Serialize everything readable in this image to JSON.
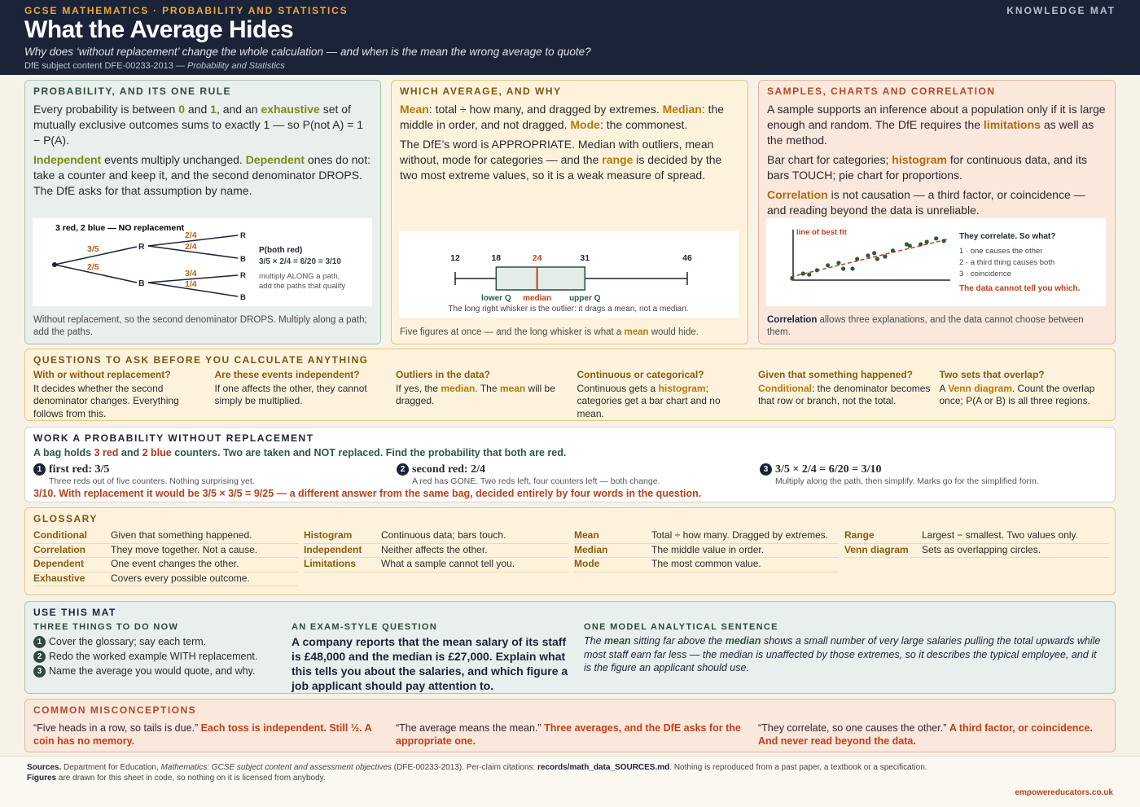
{
  "header": {
    "kicker": "GCSE MATHEMATICS · PROBABILITY AND STATISTICS",
    "title": "What the Average Hides",
    "subtitle": "Why does ‘without replacement’ change the whole calculation — and when is the mean the wrong average to quote?",
    "source": [
      "DfE subject content DFE-00233-2013 — ",
      {
        "i": "Probability and Statistics"
      }
    ],
    "badge": "KNOWLEDGE MAT"
  },
  "probability": {
    "title": "PROBABILITY, AND ITS ONE RULE",
    "paragraphs": [
      [
        "Every probability is between ",
        {
          "b": "0"
        },
        " and ",
        {
          "b": "1"
        },
        ", and an ",
        {
          "b": "exhaustive"
        },
        " set of mutually exclusive outcomes sums to exactly 1 — so P(not A) = 1 − P(A)."
      ],
      [
        {
          "b": "Independent"
        },
        " events multiply unchanged. ",
        {
          "b": "Dependent"
        },
        " ones do not: take a counter and keep it, and the second denominator DROPS. The DfE asks for that assumption by name."
      ]
    ],
    "tree": {
      "title": "3 red, 2 blue — NO replacement",
      "first": [
        "3/5",
        "2/5"
      ],
      "nodes": [
        "R",
        "B"
      ],
      "second": [
        "2/4",
        "2/4",
        "3/4",
        "1/4"
      ],
      "ends": [
        "R",
        "B",
        "R",
        "B"
      ],
      "note_title": "P(both red)",
      "note_formula": "3/5 × 2/4 = 6/20 = 3/10",
      "note_lines": [
        "multiply ALONG a path,",
        "add the paths that qualify"
      ]
    },
    "caption": "Without replacement, so the second denominator DROPS. Multiply along a path; add the paths."
  },
  "averages": {
    "title": "WHICH AVERAGE, AND WHY",
    "paragraphs": [
      [
        {
          "b": "Mean"
        },
        ": total ÷ how many, and dragged by extremes. ",
        {
          "b": "Median"
        },
        ": the middle in order, and not dragged. ",
        {
          "b": "Mode"
        },
        ": the commonest."
      ],
      [
        "The DfE’s word is APPROPRIATE. Median with outliers, mean without, mode for categories — and the ",
        {
          "b": "range"
        },
        " is decided by the two most extreme values, so it is a weak measure of spread."
      ]
    ],
    "boxplot": {
      "min": 12,
      "q1": 18,
      "median": 24,
      "q3": 31,
      "max": 46,
      "q1_label": "lower Q",
      "median_label": "median",
      "q3_label": "upper Q",
      "caption": "The long right whisker is the outlier: it drags a mean, not a median."
    },
    "caption": [
      "Five figures at once — and the long whisker is what a ",
      {
        "b": "mean"
      },
      " would hide."
    ]
  },
  "samples": {
    "title": "SAMPLES, CHARTS AND CORRELATION",
    "paragraphs": [
      [
        "A sample supports an inference about a population only if it is large enough and random. The DfE requires the ",
        {
          "b": "limitations"
        },
        " as well as the method."
      ],
      [
        "Bar chart for categories; ",
        {
          "b": "histogram"
        },
        " for continuous data, and its bars TOUCH; pie chart for proportions."
      ],
      [
        {
          "b": "Correlation"
        },
        " is not causation — a third factor, or coincidence — and reading beyond the data is unreliable."
      ]
    ],
    "scatter": {
      "fit_label": "line of best fit",
      "xlim": [
        0,
        100
      ],
      "ylim": [
        0,
        100
      ],
      "points": [
        [
          1,
          5
        ],
        [
          8,
          15
        ],
        [
          12,
          13
        ],
        [
          17,
          22
        ],
        [
          24,
          32
        ],
        [
          31,
          37
        ],
        [
          34,
          25
        ],
        [
          40,
          25
        ],
        [
          43,
          45
        ],
        [
          50,
          52
        ],
        [
          54,
          57
        ],
        [
          56,
          45
        ],
        [
          61,
          50
        ],
        [
          66,
          62
        ],
        [
          75,
          75
        ],
        [
          77,
          72
        ],
        [
          84,
          75
        ],
        [
          88,
          80
        ],
        [
          94,
          87
        ],
        [
          99,
          82
        ]
      ],
      "heading": "They correlate. So what?",
      "options": [
        "1 · one causes the other",
        "2 · a third thing causes both",
        "3 · coincidence"
      ],
      "verdict": "The data cannot tell you which."
    },
    "caption": [
      {
        "b": "Correlation"
      },
      " allows three explanations, and the data cannot choose between them."
    ]
  },
  "questions": {
    "title": "QUESTIONS TO ASK BEFORE YOU CALCULATE ANYTHING",
    "items": [
      {
        "q": "With or without replacement?",
        "a": [
          "It decides whether the second denominator changes. Everything follows from this."
        ]
      },
      {
        "q": "Are these events independent?",
        "a": [
          "If one affects the other, they cannot simply be multiplied."
        ]
      },
      {
        "q": "Outliers in the data?",
        "a": [
          "If yes, the ",
          {
            "b": "median"
          },
          ". The ",
          {
            "b": "mean"
          },
          " will be dragged."
        ]
      },
      {
        "q": "Continuous or categorical?",
        "a": [
          "Continuous gets a ",
          {
            "b": "histogram"
          },
          "; categories get a bar chart and no mean."
        ]
      },
      {
        "q": "Given that something happened?",
        "a": [
          {
            "b": "Conditional"
          },
          ": the denominator becomes that row or branch, not the total."
        ]
      },
      {
        "q": "Two sets that overlap?",
        "a": [
          "A ",
          {
            "b": "Venn diagram"
          },
          ". Count the overlap once; P(A or B) is all three regions."
        ]
      }
    ]
  },
  "worked": {
    "title": "WORK A PROBABILITY WITHOUT REPLACEMENT",
    "problem": [
      "A bag holds ",
      {
        "b": "3 red"
      },
      " and ",
      {
        "b": "2 blue"
      },
      " counters. Two are taken and NOT replaced. Find the probability that both are red."
    ],
    "steps": [
      {
        "n": "1",
        "head": "first red: 3/5",
        "note": "Three reds out of five counters. Nothing surprising yet."
      },
      {
        "n": "2",
        "head": "second red: 2/4",
        "note": "A red has GONE. Two reds left, four counters left — both change."
      },
      {
        "n": "3",
        "head": "3/5 × 2/4 = 6/20 = 3/10",
        "note": "Multiply along the path, then simplify. Marks go for the simplified form."
      }
    ],
    "conclusion": "3/10. With replacement it would be 3/5 × 3/5 = 9/25 — a different answer from the same bag, decided entirely by four words in the question."
  },
  "glossary": {
    "title": "GLOSSARY",
    "columns": [
      [
        {
          "term": "Conditional",
          "def": "Given that something happened."
        },
        {
          "term": "Correlation",
          "def": "They move together. Not a cause."
        },
        {
          "term": "Dependent",
          "def": "One event changes the other."
        },
        {
          "term": "Exhaustive",
          "def": "Covers every possible outcome."
        }
      ],
      [
        {
          "term": "Histogram",
          "def": "Continuous data; bars touch."
        },
        {
          "term": "Independent",
          "def": "Neither affects the other."
        },
        {
          "term": "Limitations",
          "def": "What a sample cannot tell you."
        }
      ],
      [
        {
          "term": "Mean",
          "def": "Total ÷ how many. Dragged by extremes."
        },
        {
          "term": "Median",
          "def": "The middle value in order."
        },
        {
          "term": "Mode",
          "def": "The most common value."
        }
      ],
      [
        {
          "term": "Range",
          "def": "Largest − smallest. Two values only."
        },
        {
          "term": "Venn diagram",
          "def": "Sets as overlapping circles."
        }
      ]
    ]
  },
  "use": {
    "title": "USE THIS MAT",
    "todo_title": "THREE THINGS TO DO NOW",
    "todo": [
      {
        "n": "1",
        "text": "Cover the glossary; say each term."
      },
      {
        "n": "2",
        "text": "Redo the worked example WITH replacement."
      },
      {
        "n": "3",
        "text": "Name the average you would quote, and why."
      }
    ],
    "exam_title": "AN EXAM-STYLE QUESTION",
    "exam": "A company reports that the mean salary of its staff is £48,000 and the median is £27,000. Explain what this tells you about the salaries, and which figure a job applicant should pay attention to.",
    "model_title": "ONE MODEL ANALYTICAL SENTENCE",
    "model": [
      "The ",
      {
        "b": "mean"
      },
      " sitting far above the ",
      {
        "b": "median"
      },
      " shows a small number of very large salaries pulling the total upwards while most staff earn far less — the median is unaffected by those extremes, so it describes the typical employee, and it is the figure an applicant should use."
    ]
  },
  "misconceptions": {
    "title": "COMMON MISCONCEPTIONS",
    "items": [
      {
        "myth": "“Five heads in a row, so tails is due.”",
        "fix": "Each toss is independent. Still ½. A coin has no memory."
      },
      {
        "myth": "“The average means the mean.”",
        "fix": "Three averages, and the DfE asks for the appropriate one."
      },
      {
        "myth": "“They correlate, so one causes the other.”",
        "fix": "A third factor, or coincidence. And never read beyond the data."
      }
    ]
  },
  "footer": {
    "sources": [
      {
        "b": "Sources."
      },
      " Department for Education, ",
      {
        "i": "Mathematics: GCSE subject content and assessment objectives"
      },
      " (DFE-00233-2013). Per-claim citations: ",
      {
        "b": "records/math_data_SOURCES.md"
      },
      ". Nothing is reproduced from a past paper, a textbook or a specification."
    ],
    "figures": [
      {
        "b": "Figures"
      },
      " are drawn for this sheet in code, so nothing on it is licensed from anybody."
    ],
    "site": "empowereducators.co.uk"
  }
}
